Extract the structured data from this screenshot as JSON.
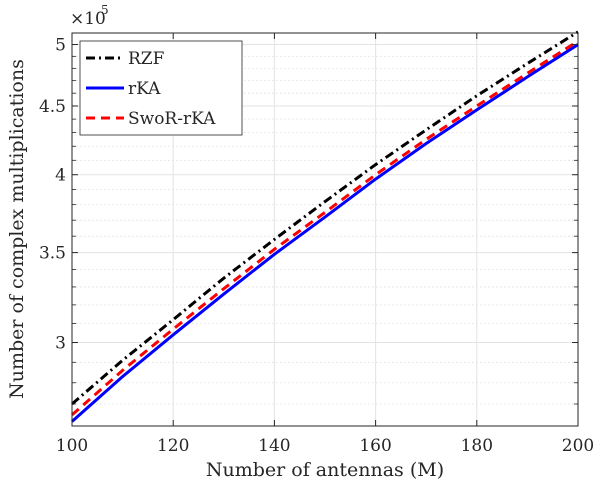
{
  "chart_data": {
    "type": "line",
    "xlabel": "Number of antennas (M)",
    "ylabel": "Number of complex multiplications",
    "y_multiplier_base": "×10",
    "y_multiplier_exp": "5",
    "xlim": [
      100,
      200
    ],
    "ylim": [
      2.6,
      5.1
    ],
    "yscale": "log",
    "grid": true,
    "minor_grid": true,
    "legend_position": "top-left",
    "x_ticks": [
      100,
      120,
      140,
      160,
      180,
      200
    ],
    "y_ticks": [
      3,
      3.5,
      4,
      4.5,
      5
    ],
    "x_tick_labels": [
      "100",
      "120",
      "140",
      "160",
      "180",
      "200"
    ],
    "y_tick_labels": [
      "3",
      "3.5",
      "4",
      "4.5",
      "5"
    ],
    "x": [
      100,
      110,
      120,
      130,
      140,
      150,
      160,
      170,
      180,
      190,
      200
    ],
    "series": [
      {
        "name": "RZF",
        "color": "#000000",
        "dash": "dashdot",
        "values": [
          2.7,
          2.91,
          3.12,
          3.35,
          3.58,
          3.82,
          4.07,
          4.32,
          4.58,
          4.84,
          5.11
        ]
      },
      {
        "name": "rKA",
        "color": "#0000ff",
        "dash": "solid",
        "values": [
          2.62,
          2.83,
          3.04,
          3.26,
          3.49,
          3.72,
          3.97,
          4.22,
          4.47,
          4.73,
          5.0
        ]
      },
      {
        "name": "SwoR-rKA",
        "color": "#ff0000",
        "dash": "dashed",
        "values": [
          2.65,
          2.86,
          3.07,
          3.29,
          3.52,
          3.75,
          4.0,
          4.25,
          4.5,
          4.76,
          5.03
        ]
      }
    ]
  }
}
